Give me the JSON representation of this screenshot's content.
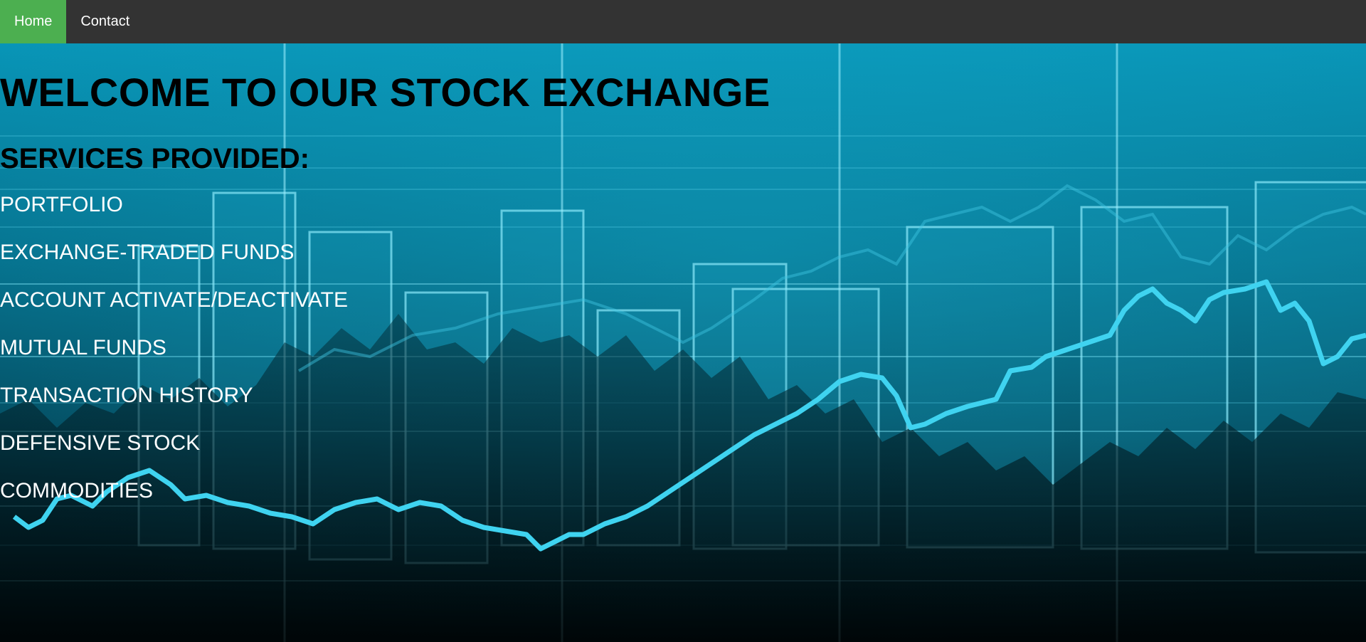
{
  "nav": {
    "items": [
      {
        "label": "Home",
        "active": true
      },
      {
        "label": "Contact",
        "active": false
      }
    ]
  },
  "hero": {
    "title": "WELCOME TO OUR STOCK EXCHANGE",
    "subtitle": "SERVICES PROVIDED:",
    "services": [
      "PORTFOLIO",
      "EXCHANGE-TRADED FUNDS",
      "ACCOUNT ACTIVATE/DEACTIVATE",
      "MUTUAL FUNDS",
      "TRANSACTION HISTORY",
      "DEFENSIVE STOCK",
      "COMMODITIES"
    ]
  },
  "colors": {
    "navbar_bg": "#333333",
    "active_tab": "#4CAF50",
    "hero_teal": "#0a8fb0",
    "chart_line": "#3fd3f0"
  }
}
